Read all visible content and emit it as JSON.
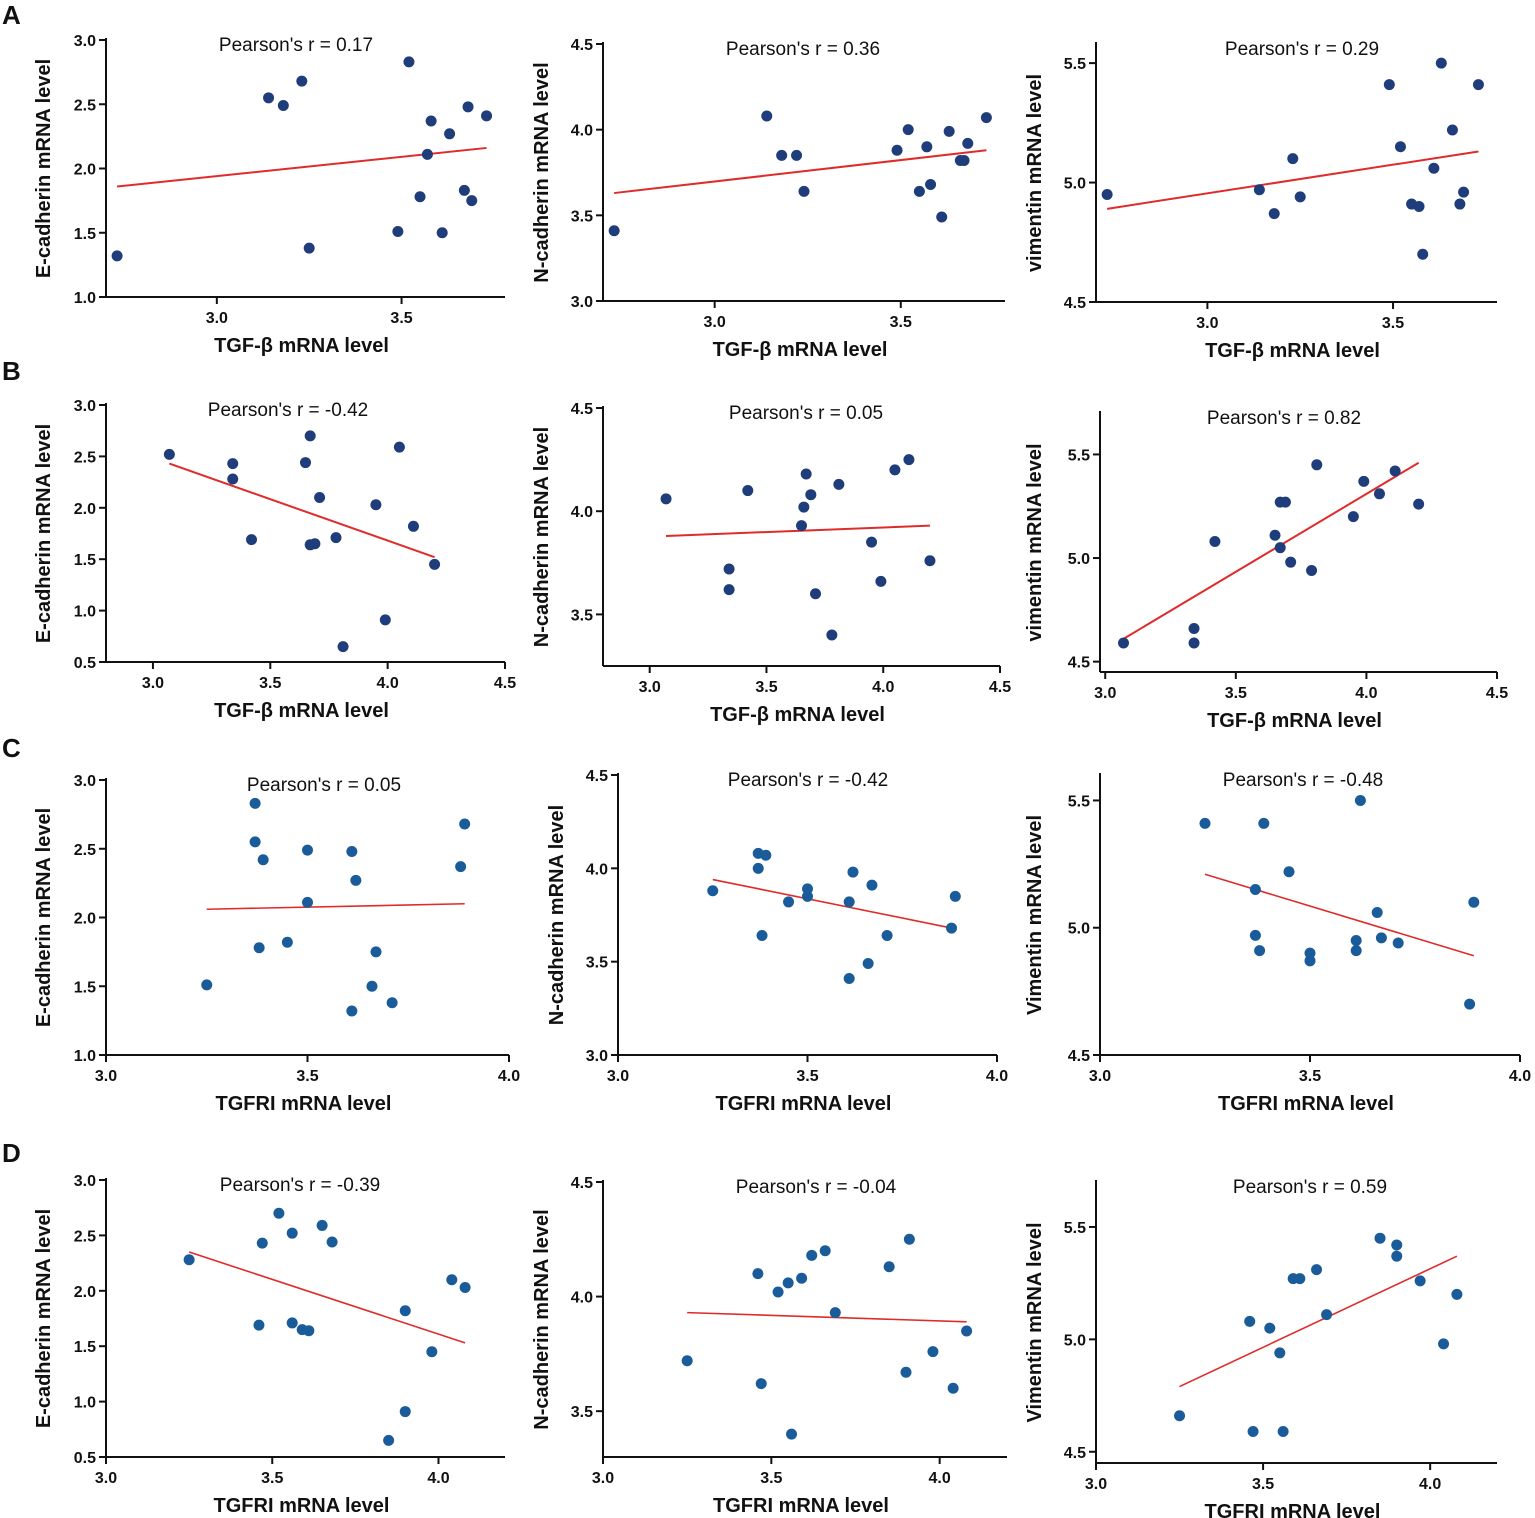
{
  "colors": {
    "axis": "#111111",
    "fit_line": "#e02b2b",
    "point_navy": "#1f3d7a",
    "point_blue": "#1a5c9a"
  },
  "panel_labels": [
    "A",
    "B",
    "C",
    "D"
  ],
  "chart_data": [
    {
      "id": "A1",
      "type": "scatter",
      "panel": "A",
      "title": "Pearson's r = 0.17",
      "xlabel": "TGF-β mRNA level",
      "ylabel": "E-cadherin mRNA level",
      "xlim": [
        2.7,
        3.78
      ],
      "ylim": [
        1.0,
        3.0
      ],
      "xticks": [
        3.0,
        3.5
      ],
      "xtick_labels": [
        "3.0",
        "3.5"
      ],
      "yticks": [
        1.0,
        1.5,
        2.0,
        2.5,
        3.0
      ],
      "ytick_labels": [
        "1.0",
        "1.5",
        "2.0",
        "2.5",
        "3.0"
      ],
      "points": [
        [
          2.73,
          1.32
        ],
        [
          3.14,
          2.55
        ],
        [
          3.18,
          2.49
        ],
        [
          3.23,
          2.68
        ],
        [
          3.25,
          1.38
        ],
        [
          3.49,
          1.51
        ],
        [
          3.52,
          2.83
        ],
        [
          3.55,
          1.78
        ],
        [
          3.57,
          2.11
        ],
        [
          3.58,
          2.37
        ],
        [
          3.61,
          1.5
        ],
        [
          3.63,
          2.27
        ],
        [
          3.67,
          1.83
        ],
        [
          3.68,
          2.48
        ],
        [
          3.69,
          1.75
        ],
        [
          3.73,
          2.41
        ]
      ],
      "fit": [
        [
          2.73,
          1.86
        ],
        [
          3.73,
          2.16
        ]
      ]
    },
    {
      "id": "A2",
      "type": "scatter",
      "panel": "A",
      "title": "Pearson's r = 0.36",
      "xlabel": "TGF-β mRNA level",
      "ylabel": "N-cadherin mRNA level",
      "xlim": [
        2.7,
        3.78
      ],
      "ylim": [
        3.0,
        4.5
      ],
      "xticks": [
        3.0,
        3.5
      ],
      "xtick_labels": [
        "3.0",
        "3.5"
      ],
      "yticks": [
        3.0,
        3.5,
        4.0,
        4.5
      ],
      "ytick_labels": [
        "3.0",
        "3.5",
        "4.0",
        "4.5"
      ],
      "points": [
        [
          2.73,
          3.41
        ],
        [
          3.14,
          4.08
        ],
        [
          3.18,
          3.85
        ],
        [
          3.22,
          3.85
        ],
        [
          3.24,
          3.64
        ],
        [
          3.49,
          3.88
        ],
        [
          3.52,
          4.0
        ],
        [
          3.55,
          3.64
        ],
        [
          3.57,
          3.9
        ],
        [
          3.58,
          3.68
        ],
        [
          3.61,
          3.49
        ],
        [
          3.63,
          3.99
        ],
        [
          3.66,
          3.82
        ],
        [
          3.67,
          3.82
        ],
        [
          3.68,
          3.92
        ],
        [
          3.73,
          4.07
        ]
      ],
      "fit": [
        [
          2.73,
          3.63
        ],
        [
          3.73,
          3.88
        ]
      ]
    },
    {
      "id": "A3",
      "type": "scatter",
      "panel": "A",
      "title": "Pearson's r = 0.29",
      "xlabel": "TGF-β mRNA level",
      "ylabel": "vimentin mRNA level",
      "xlim": [
        2.7,
        3.78
      ],
      "ylim": [
        4.5,
        5.58
      ],
      "xticks": [
        3.0,
        3.5
      ],
      "xtick_labels": [
        "3.0",
        "3.5"
      ],
      "yticks": [
        4.5,
        5.0,
        5.5
      ],
      "ytick_labels": [
        "4.5",
        "5.0",
        "5.5"
      ],
      "points": [
        [
          2.73,
          4.95
        ],
        [
          3.14,
          4.97
        ],
        [
          3.18,
          4.87
        ],
        [
          3.23,
          5.1
        ],
        [
          3.25,
          4.94
        ],
        [
          3.49,
          5.41
        ],
        [
          3.52,
          5.15
        ],
        [
          3.55,
          4.91
        ],
        [
          3.57,
          4.9
        ],
        [
          3.58,
          4.7
        ],
        [
          3.61,
          5.06
        ],
        [
          3.63,
          5.5
        ],
        [
          3.66,
          5.22
        ],
        [
          3.68,
          4.91
        ],
        [
          3.69,
          4.96
        ],
        [
          3.73,
          5.41
        ]
      ],
      "fit": [
        [
          2.73,
          4.89
        ],
        [
          3.73,
          5.13
        ]
      ]
    },
    {
      "id": "B1",
      "type": "scatter",
      "panel": "B",
      "title": "Pearson's r = -0.42",
      "xlabel": "TGF-β mRNA level",
      "ylabel": "E-cadherin mRNA level",
      "xlim": [
        2.8,
        4.5
      ],
      "ylim": [
        0.5,
        3.0
      ],
      "xticks": [
        3.0,
        3.5,
        4.0,
        4.5
      ],
      "xtick_labels": [
        "3.0",
        "3.5",
        "4.0",
        "4.5"
      ],
      "yticks": [
        0.5,
        1.0,
        1.5,
        2.0,
        2.5,
        3.0
      ],
      "ytick_labels": [
        "0.5",
        "1.0",
        "1.5",
        "2.0",
        "2.5",
        "3.0"
      ],
      "points": [
        [
          3.07,
          2.52
        ],
        [
          3.34,
          2.43
        ],
        [
          3.34,
          2.28
        ],
        [
          3.42,
          1.69
        ],
        [
          3.65,
          2.44
        ],
        [
          3.67,
          2.7
        ],
        [
          3.67,
          1.64
        ],
        [
          3.69,
          1.65
        ],
        [
          3.71,
          2.1
        ],
        [
          3.78,
          1.71
        ],
        [
          3.81,
          0.65
        ],
        [
          3.95,
          2.03
        ],
        [
          3.99,
          0.91
        ],
        [
          4.05,
          2.59
        ],
        [
          4.11,
          1.82
        ],
        [
          4.2,
          1.45
        ]
      ],
      "fit": [
        [
          3.07,
          2.43
        ],
        [
          4.2,
          1.52
        ]
      ]
    },
    {
      "id": "B2",
      "type": "scatter",
      "panel": "B",
      "title": "Pearson's r = 0.05",
      "xlabel": "TGF-β mRNA level",
      "ylabel": "N-cadherin mRNA level",
      "xlim": [
        2.8,
        4.5
      ],
      "ylim": [
        3.25,
        4.5
      ],
      "xticks": [
        3.0,
        3.5,
        4.0,
        4.5
      ],
      "xtick_labels": [
        "3.0",
        "3.5",
        "4.0",
        "4.5"
      ],
      "yticks": [
        3.5,
        4.0,
        4.5
      ],
      "ytick_labels": [
        "3.5",
        "4.0",
        "4.5"
      ],
      "points": [
        [
          3.07,
          4.06
        ],
        [
          3.34,
          3.72
        ],
        [
          3.34,
          3.62
        ],
        [
          3.42,
          4.1
        ],
        [
          3.65,
          3.93
        ],
        [
          3.66,
          4.02
        ],
        [
          3.67,
          4.18
        ],
        [
          3.69,
          4.08
        ],
        [
          3.71,
          3.6
        ],
        [
          3.78,
          3.4
        ],
        [
          3.81,
          4.13
        ],
        [
          3.95,
          3.85
        ],
        [
          3.99,
          3.66
        ],
        [
          4.05,
          4.2
        ],
        [
          4.11,
          4.25
        ],
        [
          4.2,
          3.76
        ]
      ],
      "fit": [
        [
          3.07,
          3.88
        ],
        [
          4.2,
          3.93
        ]
      ]
    },
    {
      "id": "B3",
      "type": "scatter",
      "panel": "B",
      "title": "Pearson's r = 0.82",
      "xlabel": "TGF-β mRNA level",
      "ylabel": "vimentin mRNA level",
      "xlim": [
        2.98,
        4.5
      ],
      "ylim": [
        4.45,
        5.7
      ],
      "xticks": [
        3.0,
        3.5,
        4.0,
        4.5
      ],
      "xtick_labels": [
        "3.0",
        "3.5",
        "4.0",
        "4.5"
      ],
      "yticks": [
        4.5,
        5.0,
        5.5
      ],
      "ytick_labels": [
        "4.5",
        "5.0",
        "5.5"
      ],
      "points": [
        [
          3.07,
          4.59
        ],
        [
          3.34,
          4.66
        ],
        [
          3.34,
          4.59
        ],
        [
          3.42,
          5.08
        ],
        [
          3.65,
          5.11
        ],
        [
          3.67,
          5.05
        ],
        [
          3.67,
          5.27
        ],
        [
          3.69,
          5.27
        ],
        [
          3.71,
          4.98
        ],
        [
          3.79,
          4.94
        ],
        [
          3.81,
          5.45
        ],
        [
          3.95,
          5.2
        ],
        [
          3.99,
          5.37
        ],
        [
          4.05,
          5.31
        ],
        [
          4.11,
          5.42
        ],
        [
          4.2,
          5.26
        ]
      ],
      "fit": [
        [
          3.07,
          4.61
        ],
        [
          4.2,
          5.46
        ]
      ]
    },
    {
      "id": "C1",
      "type": "scatter",
      "panel": "C",
      "title": "Pearson's r = 0.05",
      "xlabel": "TGFRI mRNA level",
      "ylabel": "E-cadherin mRNA level",
      "xlim": [
        3.0,
        4.0
      ],
      "ylim": [
        1.0,
        3.0
      ],
      "xticks": [
        3.0,
        3.5,
        4.0
      ],
      "xtick_labels": [
        "3.0",
        "3.5",
        "4.0"
      ],
      "yticks": [
        1.0,
        1.5,
        2.0,
        2.5,
        3.0
      ],
      "ytick_labels": [
        "1.0",
        "1.5",
        "2.0",
        "2.5",
        "3.0"
      ],
      "points": [
        [
          3.25,
          1.51
        ],
        [
          3.37,
          2.83
        ],
        [
          3.37,
          2.55
        ],
        [
          3.38,
          1.78
        ],
        [
          3.39,
          2.42
        ],
        [
          3.45,
          1.82
        ],
        [
          3.5,
          2.49
        ],
        [
          3.5,
          2.11
        ],
        [
          3.61,
          1.32
        ],
        [
          3.61,
          2.48
        ],
        [
          3.62,
          2.27
        ],
        [
          3.66,
          1.5
        ],
        [
          3.67,
          1.75
        ],
        [
          3.71,
          1.38
        ],
        [
          3.88,
          2.37
        ],
        [
          3.89,
          2.68
        ]
      ],
      "fit": [
        [
          3.25,
          2.06
        ],
        [
          3.89,
          2.1
        ]
      ]
    },
    {
      "id": "C2",
      "type": "scatter",
      "panel": "C",
      "title": "Pearson's r = -0.42",
      "xlabel": "TGFRI mRNA level",
      "ylabel": "N-cadherin mRNA level",
      "xlim": [
        3.0,
        4.0
      ],
      "ylim": [
        3.0,
        4.5
      ],
      "xticks": [
        3.0,
        3.5,
        4.0
      ],
      "xtick_labels": [
        "3.0",
        "3.5",
        "4.0"
      ],
      "yticks": [
        3.0,
        3.5,
        4.0,
        4.5
      ],
      "ytick_labels": [
        "3.0",
        "3.5",
        "4.0",
        "4.5"
      ],
      "points": [
        [
          3.25,
          3.88
        ],
        [
          3.37,
          4.08
        ],
        [
          3.37,
          4.0
        ],
        [
          3.38,
          3.64
        ],
        [
          3.39,
          4.07
        ],
        [
          3.45,
          3.82
        ],
        [
          3.5,
          3.89
        ],
        [
          3.5,
          3.85
        ],
        [
          3.61,
          3.82
        ],
        [
          3.61,
          3.41
        ],
        [
          3.62,
          3.98
        ],
        [
          3.66,
          3.49
        ],
        [
          3.67,
          3.91
        ],
        [
          3.71,
          3.64
        ],
        [
          3.88,
          3.68
        ],
        [
          3.89,
          3.85
        ]
      ],
      "fit": [
        [
          3.25,
          3.94
        ],
        [
          3.88,
          3.68
        ]
      ]
    },
    {
      "id": "C3",
      "type": "scatter",
      "panel": "C",
      "title": "Pearson's r = -0.48",
      "xlabel": "TGFRI mRNA level",
      "ylabel": "Vimentin mRNA level",
      "xlim": [
        3.0,
        4.0
      ],
      "ylim": [
        4.5,
        5.6
      ],
      "xticks": [
        3.0,
        3.5,
        4.0
      ],
      "xtick_labels": [
        "3.0",
        "3.5",
        "4.0"
      ],
      "yticks": [
        4.5,
        5.0,
        5.5
      ],
      "ytick_labels": [
        "4.5",
        "5.0",
        "5.5"
      ],
      "points": [
        [
          3.25,
          5.41
        ],
        [
          3.37,
          5.15
        ],
        [
          3.37,
          4.97
        ],
        [
          3.38,
          4.91
        ],
        [
          3.39,
          5.41
        ],
        [
          3.45,
          5.22
        ],
        [
          3.5,
          4.9
        ],
        [
          3.5,
          4.87
        ],
        [
          3.61,
          4.95
        ],
        [
          3.61,
          4.91
        ],
        [
          3.62,
          5.5
        ],
        [
          3.66,
          5.06
        ],
        [
          3.67,
          4.96
        ],
        [
          3.71,
          4.94
        ],
        [
          3.88,
          4.7
        ],
        [
          3.89,
          5.1
        ]
      ],
      "fit": [
        [
          3.25,
          5.21
        ],
        [
          3.89,
          4.89
        ]
      ]
    },
    {
      "id": "D1",
      "type": "scatter",
      "panel": "D",
      "title": "Pearson's r = -0.39",
      "xlabel": "TGFRI mRNA level",
      "ylabel": "E-cadherin mRNA level",
      "xlim": [
        3.0,
        4.2
      ],
      "ylim": [
        0.5,
        3.0
      ],
      "xticks": [
        3.0,
        3.5,
        4.0
      ],
      "xtick_labels": [
        "3.0",
        "3.5",
        "4.0"
      ],
      "yticks": [
        0.5,
        1.0,
        1.5,
        2.0,
        2.5,
        3.0
      ],
      "ytick_labels": [
        "0.5",
        "1.0",
        "1.5",
        "2.0",
        "2.5",
        "3.0"
      ],
      "points": [
        [
          3.25,
          2.28
        ],
        [
          3.46,
          1.69
        ],
        [
          3.47,
          2.43
        ],
        [
          3.52,
          2.7
        ],
        [
          3.56,
          2.52
        ],
        [
          3.56,
          1.71
        ],
        [
          3.59,
          1.65
        ],
        [
          3.61,
          1.64
        ],
        [
          3.65,
          2.59
        ],
        [
          3.68,
          2.44
        ],
        [
          3.85,
          0.65
        ],
        [
          3.9,
          1.82
        ],
        [
          3.9,
          0.91
        ],
        [
          3.98,
          1.45
        ],
        [
          4.04,
          2.1
        ],
        [
          4.08,
          2.03
        ]
      ],
      "fit": [
        [
          3.25,
          2.35
        ],
        [
          4.08,
          1.53
        ]
      ]
    },
    {
      "id": "D2",
      "type": "scatter",
      "panel": "D",
      "title": "Pearson's r = -0.04",
      "xlabel": "TGFRI mRNA level",
      "ylabel": "N-cadherin mRNA level",
      "xlim": [
        3.0,
        4.2
      ],
      "ylim": [
        3.3,
        4.5
      ],
      "xticks": [
        3.0,
        3.5,
        4.0
      ],
      "xtick_labels": [
        "3.0",
        "3.5",
        "4.0"
      ],
      "yticks": [
        3.5,
        4.0,
        4.5
      ],
      "ytick_labels": [
        "3.5",
        "4.0",
        "4.5"
      ],
      "points": [
        [
          3.25,
          3.72
        ],
        [
          3.46,
          4.1
        ],
        [
          3.47,
          3.62
        ],
        [
          3.52,
          4.02
        ],
        [
          3.55,
          4.06
        ],
        [
          3.56,
          3.4
        ],
        [
          3.59,
          4.08
        ],
        [
          3.62,
          4.18
        ],
        [
          3.66,
          4.2
        ],
        [
          3.69,
          3.93
        ],
        [
          3.85,
          4.13
        ],
        [
          3.9,
          3.67
        ],
        [
          3.91,
          4.25
        ],
        [
          3.98,
          3.76
        ],
        [
          4.04,
          3.6
        ],
        [
          4.08,
          3.85
        ]
      ],
      "fit": [
        [
          3.25,
          3.93
        ],
        [
          4.08,
          3.89
        ]
      ]
    },
    {
      "id": "D3",
      "type": "scatter",
      "panel": "D",
      "title": "Pearson's r = 0.59",
      "xlabel": "TGFRI mRNA level",
      "ylabel": "Vimentin mRNA level",
      "xlim": [
        3.0,
        4.2
      ],
      "ylim": [
        4.45,
        5.7
      ],
      "xticks": [
        3.0,
        3.5,
        4.0
      ],
      "xtick_labels": [
        "3.0",
        "3.5",
        "4.0"
      ],
      "yticks": [
        4.5,
        5.0,
        5.5
      ],
      "ytick_labels": [
        "4.5",
        "5.0",
        "5.5"
      ],
      "points": [
        [
          3.25,
          4.66
        ],
        [
          3.46,
          5.08
        ],
        [
          3.47,
          4.59
        ],
        [
          3.52,
          5.05
        ],
        [
          3.55,
          4.94
        ],
        [
          3.56,
          4.59
        ],
        [
          3.59,
          5.27
        ],
        [
          3.61,
          5.27
        ],
        [
          3.66,
          5.31
        ],
        [
          3.69,
          5.11
        ],
        [
          3.85,
          5.45
        ],
        [
          3.9,
          5.42
        ],
        [
          3.9,
          5.37
        ],
        [
          3.97,
          5.26
        ],
        [
          4.04,
          4.98
        ],
        [
          4.08,
          5.2
        ]
      ],
      "fit": [
        [
          3.25,
          4.79
        ],
        [
          4.08,
          5.37
        ]
      ]
    }
  ]
}
